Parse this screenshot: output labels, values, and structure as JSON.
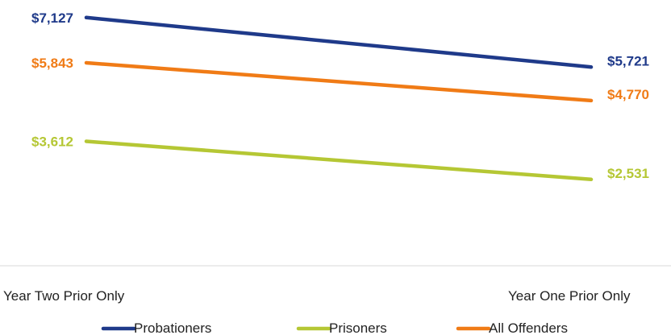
{
  "chart_data": {
    "type": "line",
    "categories": [
      "Year Two Prior Only",
      "Year One Prior Only"
    ],
    "series": [
      {
        "name": "Probationers",
        "values": [
          7127,
          5721
        ],
        "labels": [
          "$7,127",
          "$5,721"
        ],
        "color": "#1f3a8a"
      },
      {
        "name": "Prisoners",
        "values": [
          3612,
          2531
        ],
        "labels": [
          "$3,612",
          "$2,531"
        ],
        "color": "#b5c734"
      },
      {
        "name": "All Offenders",
        "values": [
          5843,
          4770
        ],
        "labels": [
          "$5,843",
          "$4,770"
        ],
        "color": "#f07b16"
      }
    ],
    "legend_order": [
      0,
      1,
      2
    ],
    "legend_position": "bottom",
    "grid": false
  }
}
